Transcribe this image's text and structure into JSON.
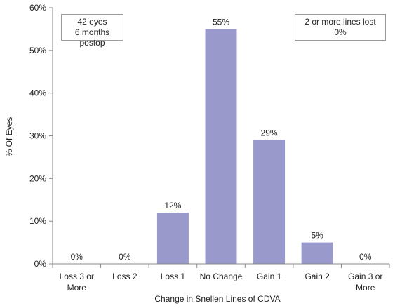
{
  "chart_data": {
    "type": "bar",
    "categories": [
      [
        "Loss 3 or",
        "More"
      ],
      [
        "Loss 2"
      ],
      [
        "Loss 1"
      ],
      [
        "No Change"
      ],
      [
        "Gain 1"
      ],
      [
        "Gain 2"
      ],
      [
        "Gain 3 or",
        "More"
      ]
    ],
    "values": [
      0,
      0,
      12,
      55,
      29,
      5,
      0
    ],
    "data_labels": [
      "0%",
      "0%",
      "12%",
      "55%",
      "29%",
      "5%",
      "0%"
    ],
    "xlabel": "Change in Snellen Lines of CDVA",
    "ylabel": "% Of Eyes",
    "ylim": [
      0,
      60
    ],
    "yticks": [
      0,
      10,
      20,
      30,
      40,
      50,
      60
    ],
    "ytick_labels": [
      "0%",
      "10%",
      "20%",
      "30%",
      "40%",
      "50%",
      "60%"
    ],
    "bar_color": "#9999cc",
    "grid": false
  },
  "annotations": {
    "left": {
      "line1": "42 eyes",
      "line2": "6 months postop"
    },
    "right": {
      "line1": "2 or more lines lost",
      "line2": "0%"
    }
  }
}
